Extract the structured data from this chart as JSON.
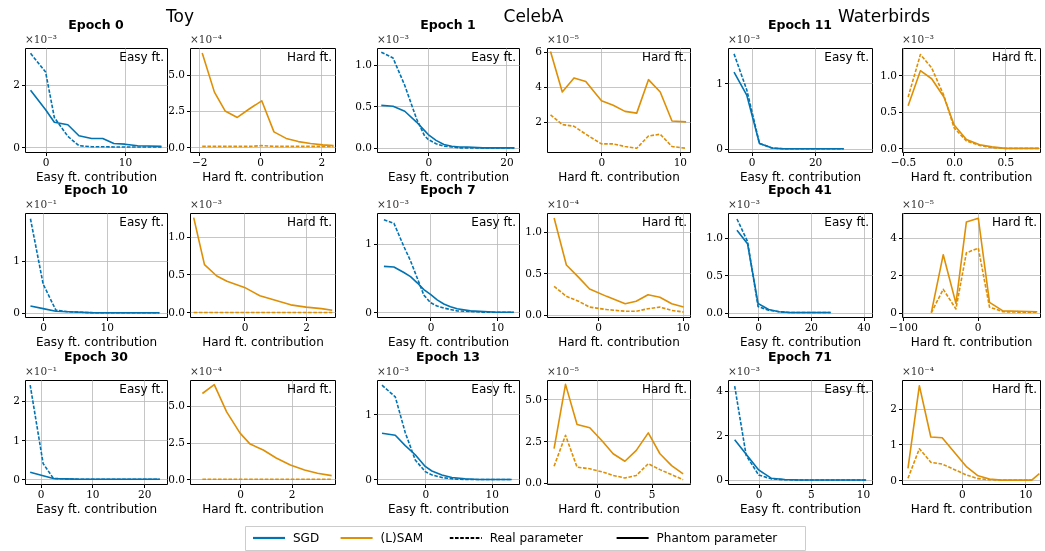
{
  "chart_data": [
    {
      "type": "line",
      "title": "Epoch 0",
      "subtitle": "Toy",
      "xlabel": "Easy ft. contribution",
      "annotations": [
        "×10⁻³",
        "Easy ft."
      ],
      "grid": true,
      "x": [
        -1.9,
        0,
        1.1,
        2.8,
        4.2,
        5.8,
        7.2,
        8.6,
        10,
        11.6,
        13,
        14.6
      ],
      "xlim": [
        -2.6,
        15.3
      ],
      "ylim": [
        -0.15,
        3.17
      ],
      "xticks": [
        0,
        10
      ],
      "yticks": [
        0,
        2
      ],
      "series": [
        {
          "color": "#0173b2",
          "line_style": "dashed",
          "values": [
            3.0,
            2.4,
            0.95,
            0.35,
            0.05,
            0.02,
            0.02,
            0.01,
            0.01,
            0.01,
            0.01,
            0.01
          ]
        },
        {
          "color": "#0173b2",
          "line_style": "solid",
          "values": [
            1.82,
            1.2,
            0.8,
            0.72,
            0.37,
            0.28,
            0.28,
            0.12,
            0.1,
            0.05,
            0.04,
            0.03
          ]
        }
      ]
    },
    {
      "type": "line",
      "xlabel": "Hard ft. contribution",
      "annotations": [
        "×10⁻⁴",
        "Hard ft."
      ],
      "grid": true,
      "x": [
        -1.9,
        -1.5,
        -1.15,
        -0.75,
        -0.35,
        0.05,
        0.45,
        0.85,
        1.25,
        1.65,
        2.05,
        2.4
      ],
      "xlim": [
        -2.3,
        2.45
      ],
      "ylim": [
        -0.34,
        6.85
      ],
      "xticks": [
        -2,
        0,
        2
      ],
      "yticks": [
        {
          "value": 0,
          "label": "0.0"
        },
        2.5,
        {
          "value": 5,
          "label": "5.0"
        }
      ],
      "series": [
        {
          "color": "#de8f05",
          "line_style": "dashed",
          "values": [
            0.05,
            0.05,
            0.05,
            0.05,
            0.05,
            0.1,
            0.05,
            0.05,
            0.05,
            0.05,
            0.05,
            0.05
          ]
        },
        {
          "color": "#de8f05",
          "line_style": "solid",
          "values": [
            6.5,
            3.8,
            2.5,
            2.05,
            2.65,
            3.2,
            1.05,
            0.6,
            0.38,
            0.25,
            0.15,
            0.1
          ]
        }
      ]
    },
    {
      "type": "line",
      "title": "Epoch 1",
      "subtitle": "CelebA",
      "xlabel": "Easy ft. contribution",
      "annotations": [
        "×10⁻³",
        "Easy ft."
      ],
      "grid": true,
      "x": [
        -12,
        -9,
        -6,
        -3,
        -1,
        0,
        2,
        4,
        6,
        8,
        10,
        14,
        18,
        22
      ],
      "xlim": [
        -13.1,
        23.2
      ],
      "ylim": [
        -0.05,
        1.2
      ],
      "xticks": [
        0,
        20
      ],
      "yticks": [
        {
          "value": 0,
          "label": "0.0"
        },
        0.5,
        {
          "value": 1,
          "label": "1.0"
        }
      ],
      "series": [
        {
          "color": "#0173b2",
          "line_style": "dashed",
          "values": [
            1.15,
            1.08,
            0.75,
            0.35,
            0.15,
            0.1,
            0.05,
            0.02,
            0.01,
            0,
            0,
            0,
            0,
            0
          ]
        },
        {
          "color": "#0173b2",
          "line_style": "solid",
          "values": [
            0.51,
            0.5,
            0.44,
            0.31,
            0.21,
            0.16,
            0.09,
            0.04,
            0.02,
            0.01,
            0.01,
            0,
            0,
            0
          ]
        }
      ]
    },
    {
      "type": "line",
      "xlabel": "Hard ft. contribution",
      "annotations": [
        "×10⁻⁵",
        "Hard ft."
      ],
      "grid": true,
      "x": [
        -6.5,
        -5,
        -3.5,
        -2,
        0,
        1.5,
        3,
        4.5,
        6,
        7.5,
        9,
        10.8
      ],
      "xlim": [
        -6.95,
        11.3
      ],
      "ylim": [
        0.29,
        6.2
      ],
      "xticks": [
        0,
        10
      ],
      "yticks": [
        2,
        4,
        6
      ],
      "series": [
        {
          "color": "#de8f05",
          "line_style": "dashed",
          "values": [
            2.4,
            1.85,
            1.75,
            1.3,
            0.75,
            0.75,
            0.6,
            0.5,
            1.2,
            1.3,
            0.6,
            0.5
          ]
        },
        {
          "color": "#de8f05",
          "line_style": "solid",
          "values": [
            6.0,
            3.7,
            4.5,
            4.3,
            3.2,
            2.95,
            2.6,
            2.5,
            4.4,
            3.7,
            2.05,
            2.0
          ]
        }
      ]
    },
    {
      "type": "line",
      "title": "Epoch 11",
      "subtitle": "Waterbirds",
      "xlabel": "Easy ft. contribution",
      "annotations": [
        "×10⁻³",
        "Easy ft."
      ],
      "grid": true,
      "x": [
        -5.5,
        -1.5,
        2.5,
        6.5,
        10,
        15,
        20,
        25,
        29
      ],
      "xlim": [
        -7.4,
        37.9
      ],
      "ylim": [
        -0.05,
        1.54
      ],
      "xticks": [
        0,
        20
      ],
      "yticks": [
        0,
        1
      ],
      "series": [
        {
          "color": "#0173b2",
          "line_style": "dashed",
          "values": [
            1.45,
            0.9,
            0.08,
            0.01,
            0,
            0,
            0,
            0,
            0
          ]
        },
        {
          "color": "#0173b2",
          "line_style": "solid",
          "values": [
            1.17,
            0.82,
            0.08,
            0.01,
            0,
            0,
            0,
            0,
            0
          ]
        }
      ]
    },
    {
      "type": "line",
      "xlabel": "Hard ft. contribution",
      "annotations": [
        "×10⁻³",
        "Hard ft."
      ],
      "grid": true,
      "x": [
        -0.45,
        -0.33,
        -0.22,
        -0.1,
        0,
        0.12,
        0.25,
        0.37,
        0.5,
        0.62,
        0.75,
        0.83
      ],
      "xlim": [
        -0.51,
        0.84
      ],
      "ylim": [
        -0.05,
        1.37
      ],
      "xticks": [
        -0.5,
        {
          "value": 0,
          "label": "0.0"
        },
        0.5
      ],
      "yticks": [
        {
          "value": 0,
          "label": "0.0"
        },
        0.5,
        {
          "value": 1,
          "label": "1.0"
        }
      ],
      "series": [
        {
          "color": "#de8f05",
          "line_style": "dashed",
          "values": [
            0.7,
            1.28,
            1.1,
            0.72,
            0.28,
            0.1,
            0.04,
            0.01,
            0,
            0,
            0,
            0
          ]
        },
        {
          "color": "#de8f05",
          "line_style": "solid",
          "values": [
            0.58,
            1.06,
            0.95,
            0.7,
            0.32,
            0.12,
            0.05,
            0.02,
            0,
            0,
            0,
            0
          ]
        }
      ]
    },
    {
      "type": "line",
      "title": "Epoch 10",
      "xlabel": "Easy ft. contribution",
      "annotations": [
        "×10⁻¹",
        "Easy ft."
      ],
      "grid": true,
      "x": [
        -2,
        0,
        2,
        4,
        6,
        8,
        10,
        12,
        14,
        16,
        18.3
      ],
      "xlim": [
        -2.86,
        19.5
      ],
      "ylim": [
        -0.08,
        1.91
      ],
      "xticks": [
        0,
        10
      ],
      "yticks": [
        0,
        1
      ],
      "series": [
        {
          "color": "#0173b2",
          "line_style": "dashed",
          "values": [
            1.8,
            0.55,
            0.05,
            0.02,
            0.01,
            0,
            0,
            0,
            0,
            0,
            0
          ]
        },
        {
          "color": "#0173b2",
          "line_style": "solid",
          "values": [
            0.13,
            0.08,
            0.03,
            0.02,
            0.01,
            0,
            0,
            0,
            0,
            0,
            0
          ]
        }
      ]
    },
    {
      "type": "line",
      "xlabel": "Hard ft. contribution",
      "annotations": [
        "×10⁻³",
        "Hard ft."
      ],
      "grid": true,
      "x": [
        -1.65,
        -1.3,
        -0.9,
        -0.57,
        0,
        0.5,
        1,
        1.5,
        2,
        2.5,
        2.85
      ],
      "xlim": [
        -1.77,
        2.94
      ],
      "ylim": [
        -0.06,
        1.31
      ],
      "xticks": [
        0,
        2
      ],
      "yticks": [
        {
          "value": 0,
          "label": "0.0"
        },
        0.5,
        {
          "value": 1,
          "label": "1.0"
        }
      ],
      "series": [
        {
          "color": "#de8f05",
          "line_style": "dashed",
          "values": [
            0,
            0,
            0,
            0,
            0,
            0,
            0,
            0,
            0,
            0,
            0
          ]
        },
        {
          "color": "#de8f05",
          "line_style": "solid",
          "values": [
            1.25,
            0.63,
            0.48,
            0.41,
            0.33,
            0.22,
            0.16,
            0.1,
            0.07,
            0.05,
            0.03
          ]
        }
      ]
    },
    {
      "type": "line",
      "title": "Epoch 7",
      "xlabel": "Easy ft. contribution",
      "annotations": [
        "×10⁻³",
        "Easy ft."
      ],
      "grid": true,
      "x": [
        -7,
        -5.5,
        -4,
        -3,
        -2,
        -1,
        0,
        1,
        2,
        3,
        4,
        6,
        8,
        10,
        12.5
      ],
      "xlim": [
        -8.04,
        13.3
      ],
      "ylim": [
        -0.07,
        1.45
      ],
      "xticks": [
        0,
        10
      ],
      "yticks": [
        0,
        1
      ],
      "series": [
        {
          "color": "#0173b2",
          "line_style": "dashed",
          "values": [
            1.35,
            1.3,
            0.96,
            0.75,
            0.5,
            0.25,
            0.14,
            0.09,
            0.06,
            0.04,
            0.02,
            0.01,
            0,
            0,
            0
          ]
        },
        {
          "color": "#0173b2",
          "line_style": "solid",
          "values": [
            0.67,
            0.66,
            0.58,
            0.52,
            0.43,
            0.33,
            0.26,
            0.18,
            0.12,
            0.08,
            0.05,
            0.02,
            0.01,
            0,
            0
          ]
        }
      ]
    },
    {
      "type": "line",
      "xlabel": "Hard ft. contribution",
      "annotations": [
        "×10⁻⁴",
        "Hard ft."
      ],
      "grid": true,
      "x": [
        -5.2,
        -3.75,
        -2.3,
        -1,
        1,
        3.2,
        4.5,
        5.9,
        7.3,
        8.7,
        10.1
      ],
      "xlim": [
        -6.04,
        10.86
      ],
      "ylim": [
        -0.03,
        1.23
      ],
      "xticks": [
        0,
        10
      ],
      "yticks": [
        {
          "value": 0,
          "label": "0.0"
        },
        0.5,
        {
          "value": 1,
          "label": "1.0"
        }
      ],
      "series": [
        {
          "color": "#de8f05",
          "line_style": "dashed",
          "values": [
            0.34,
            0.22,
            0.16,
            0.09,
            0.06,
            0.04,
            0.04,
            0.07,
            0.09,
            0.05,
            0.03
          ]
        },
        {
          "color": "#de8f05",
          "line_style": "solid",
          "values": [
            1.17,
            0.6,
            0.45,
            0.31,
            0.22,
            0.13,
            0.16,
            0.24,
            0.21,
            0.13,
            0.09
          ]
        }
      ]
    },
    {
      "type": "line",
      "title": "Epoch 41",
      "xlabel": "Easy ft. contribution",
      "annotations": [
        "×10⁻³",
        "Easy ft."
      ],
      "grid": true,
      "x": [
        -8,
        -4,
        0,
        4,
        8,
        12,
        16,
        20,
        24,
        27.5
      ],
      "xlim": [
        -11.4,
        43.2
      ],
      "ylim": [
        -0.06,
        1.33
      ],
      "xticks": [
        0,
        20,
        40
      ],
      "yticks": [
        {
          "value": 0,
          "label": "0.0"
        },
        0.5,
        {
          "value": 1,
          "label": "1.0"
        }
      ],
      "series": [
        {
          "color": "#0173b2",
          "line_style": "dashed",
          "values": [
            1.25,
            0.95,
            0.08,
            0.03,
            0.01,
            0,
            0,
            0,
            0,
            0
          ]
        },
        {
          "color": "#0173b2",
          "line_style": "solid",
          "values": [
            1.1,
            0.92,
            0.12,
            0.04,
            0.01,
            0,
            0,
            0,
            0,
            0
          ]
        }
      ]
    },
    {
      "type": "line",
      "xlabel": "Hard ft. contribution",
      "annotations": [
        "×10⁻⁵",
        "Hard ft."
      ],
      "grid": true,
      "x": [
        -62,
        -46,
        -29,
        -15,
        1,
        16,
        34,
        55,
        80
      ],
      "xlim": [
        -101.3,
        83.7
      ],
      "ylim": [
        -0.23,
        5.33
      ],
      "xticks": [
        -100,
        0
      ],
      "yticks": [
        0,
        2,
        4
      ],
      "series": [
        {
          "color": "#de8f05",
          "line_style": "dashed",
          "values": [
            0,
            1.25,
            0.2,
            3.2,
            3.45,
            0.3,
            0.05,
            0.03,
            0.02
          ]
        },
        {
          "color": "#de8f05",
          "line_style": "solid",
          "values": [
            0,
            3.1,
            0.5,
            4.85,
            5.05,
            0.55,
            0.1,
            0.08,
            0.05
          ]
        }
      ]
    },
    {
      "type": "line",
      "title": "Epoch 30",
      "xlabel": "Easy ft. contribution",
      "annotations": [
        "×10⁻¹",
        "Easy ft."
      ],
      "grid": true,
      "x": [
        -2,
        0.5,
        2.5,
        5,
        7.5,
        10,
        12.5,
        15,
        17.5,
        20,
        23
      ],
      "xlim": [
        -3.0,
        24.4
      ],
      "ylim": [
        -0.12,
        2.53
      ],
      "xticks": [
        0,
        10,
        20
      ],
      "yticks": [
        0,
        1,
        2
      ],
      "series": [
        {
          "color": "#0173b2",
          "line_style": "dashed",
          "values": [
            2.4,
            0.4,
            0.02,
            0.01,
            0,
            0,
            0,
            0,
            0,
            0,
            0
          ]
        },
        {
          "color": "#0173b2",
          "line_style": "solid",
          "values": [
            0.18,
            0.09,
            0.02,
            0.01,
            0,
            0,
            0,
            0,
            0,
            0,
            0
          ]
        }
      ]
    },
    {
      "type": "line",
      "xlabel": "Hard ft. contribution",
      "annotations": [
        "×10⁻⁴",
        "Hard ft."
      ],
      "grid": true,
      "x": [
        -1.46,
        -1.0,
        -0.52,
        0,
        0.39,
        0.9,
        1.4,
        1.95,
        2.5,
        3.0,
        3.55
      ],
      "xlim": [
        -1.94,
        3.68
      ],
      "ylim": [
        -0.32,
        6.77
      ],
      "xticks": [
        0,
        2
      ],
      "yticks": [
        {
          "value": 0,
          "label": "0.0"
        },
        2.5,
        {
          "value": 5,
          "label": "5.0"
        }
      ],
      "series": [
        {
          "color": "#de8f05",
          "line_style": "dashed",
          "values": [
            0,
            0,
            0,
            0,
            0,
            0,
            0,
            0,
            0,
            0,
            0
          ]
        },
        {
          "color": "#de8f05",
          "line_style": "solid",
          "values": [
            5.85,
            6.45,
            4.6,
            3.15,
            2.4,
            2.0,
            1.45,
            0.97,
            0.63,
            0.41,
            0.25
          ]
        }
      ]
    },
    {
      "type": "line",
      "title": "Epoch 13",
      "xlabel": "Easy ft. contribution",
      "annotations": [
        "×10⁻³",
        "Easy ft."
      ],
      "grid": true,
      "x": [
        -6.5,
        -4.5,
        -3,
        -1.5,
        0,
        1,
        2.5,
        4,
        6,
        8,
        10,
        13
      ],
      "xlim": [
        -7.25,
        14.1
      ],
      "ylim": [
        -0.07,
        1.53
      ],
      "xticks": [
        0,
        10
      ],
      "yticks": [
        0,
        1
      ],
      "series": [
        {
          "color": "#0173b2",
          "line_style": "dashed",
          "values": [
            1.45,
            1.27,
            0.72,
            0.3,
            0.12,
            0.07,
            0.03,
            0.01,
            0,
            0,
            0,
            0
          ]
        },
        {
          "color": "#0173b2",
          "line_style": "solid",
          "values": [
            0.71,
            0.68,
            0.52,
            0.38,
            0.2,
            0.13,
            0.07,
            0.03,
            0.01,
            0,
            0,
            0
          ]
        }
      ]
    },
    {
      "type": "line",
      "xlabel": "Hard ft. contribution",
      "annotations": [
        "×10⁻⁵",
        "Hard ft."
      ],
      "grid": true,
      "x": [
        -3.95,
        -2.9,
        -1.84,
        -0.67,
        0.55,
        1.47,
        2.55,
        3.6,
        4.7,
        5.77,
        6.84,
        7.9
      ],
      "xlim": [
        -4.6,
        8.53
      ],
      "ylim": [
        -0.06,
        6.16
      ],
      "xticks": [
        0,
        5
      ],
      "yticks": [
        {
          "value": 0,
          "label": "0.0"
        },
        2.5,
        {
          "value": 5,
          "label": "5.0"
        }
      ],
      "series": [
        {
          "color": "#de8f05",
          "line_style": "dashed",
          "values": [
            1.0,
            2.85,
            0.95,
            0.85,
            0.65,
            0.45,
            0.3,
            0.45,
            1.15,
            0.8,
            0.5,
            0.2
          ]
        },
        {
          "color": "#de8f05",
          "line_style": "solid",
          "values": [
            2.05,
            5.9,
            3.5,
            3.3,
            2.45,
            1.75,
            1.3,
            1.95,
            3.0,
            1.75,
            1.04,
            0.54
          ]
        }
      ]
    },
    {
      "type": "line",
      "title": "Epoch 71",
      "xlabel": "Easy ft. contribution",
      "annotations": [
        "×10⁻³",
        "Easy ft."
      ],
      "grid": true,
      "x": [
        -2.3,
        -1.2,
        0,
        1.2,
        2.5,
        4,
        6,
        8,
        10.3
      ],
      "xlim": [
        -2.94,
        10.86
      ],
      "ylim": [
        -0.18,
        4.47
      ],
      "xticks": [
        0,
        5,
        10
      ],
      "yticks": [
        0,
        2,
        4
      ],
      "series": [
        {
          "color": "#0173b2",
          "line_style": "dashed",
          "values": [
            4.2,
            1.1,
            0.22,
            0.05,
            0.01,
            0,
            0,
            0,
            0
          ]
        },
        {
          "color": "#0173b2",
          "line_style": "solid",
          "values": [
            1.8,
            1.15,
            0.45,
            0.08,
            0.02,
            0,
            0,
            0,
            0
          ]
        }
      ]
    },
    {
      "type": "line",
      "xlabel": "Hard ft. contribution",
      "annotations": [
        "×10⁻⁴",
        "Hard ft."
      ],
      "grid": true,
      "x": [
        -8.46,
        -6.67,
        -4.87,
        -3.08,
        0.77,
        2.56,
        4.36,
        6.2,
        8,
        10,
        11,
        12.2
      ],
      "xlim": [
        -9.4,
        12.3
      ],
      "ylim": [
        -0.11,
        2.81
      ],
      "xticks": [
        0,
        10
      ],
      "yticks": [
        0,
        1,
        2
      ],
      "series": [
        {
          "color": "#de8f05",
          "line_style": "dashed",
          "values": [
            0.05,
            0.88,
            0.5,
            0.45,
            0.14,
            0.04,
            0.01,
            0,
            0,
            0,
            0,
            null
          ]
        },
        {
          "color": "#de8f05",
          "line_style": "solid",
          "values": [
            0.33,
            2.65,
            1.21,
            1.19,
            0.37,
            0.12,
            0.03,
            0,
            0,
            0,
            0,
            0.18
          ]
        }
      ]
    },
    {
      "type": "other",
      "legend": "bottom",
      "series": [
        {
          "name": "SGD",
          "color": "#0173b2",
          "line_style": "solid"
        },
        {
          "name": "(L)SAM",
          "color": "#de8f05",
          "line_style": "solid"
        },
        {
          "name": "Real parameter",
          "color": "#000000",
          "line_style": "dashed"
        },
        {
          "name": "Phantom parameter",
          "color": "#000000",
          "line_style": "solid"
        }
      ]
    }
  ]
}
